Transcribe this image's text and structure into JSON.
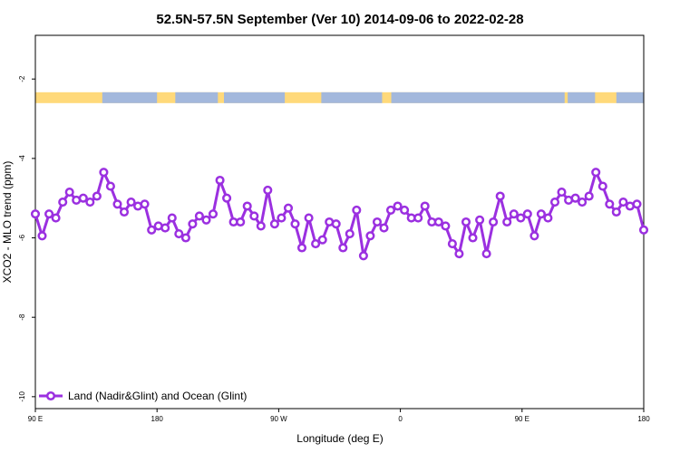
{
  "chart_data": {
    "type": "line",
    "title": "52.5N-57.5N September (Ver 10)   2014-09-06 to 2022-02-28",
    "xlabel": "Longitude (deg E)",
    "ylabel": "XCO2 - MLO trend (ppm)",
    "xlim": [
      0,
      100
    ],
    "ylim": [
      -10.3,
      -0.9
    ],
    "x_ticks": [
      {
        "pos": 0,
        "label": "90 E"
      },
      {
        "pos": 20,
        "label": "180"
      },
      {
        "pos": 40,
        "label": "90 W"
      },
      {
        "pos": 60,
        "label": "0"
      },
      {
        "pos": 80,
        "label": "90 E"
      },
      {
        "pos": 100,
        "label": "180"
      }
    ],
    "y_ticks": [
      -2,
      -4,
      -6,
      -8,
      -10
    ],
    "y_tick_labels": [
      "-2",
      "-4",
      "-6",
      "-8",
      "-10"
    ],
    "series": [
      {
        "name": "Land (Nadir&Glint) and Ocean (Glint)",
        "color": "#9b30e0",
        "values": [
          -5.4,
          -5.95,
          -5.4,
          -5.5,
          -5.1,
          -4.85,
          -5.05,
          -5.0,
          -5.1,
          -4.95,
          -4.35,
          -4.7,
          -5.15,
          -5.35,
          -5.1,
          -5.2,
          -5.15,
          -5.8,
          -5.7,
          -5.75,
          -5.5,
          -5.9,
          -6.0,
          -5.65,
          -5.45,
          -5.55,
          -5.4,
          -4.55,
          -5.0,
          -5.6,
          -5.6,
          -5.2,
          -5.45,
          -5.7,
          -4.8,
          -5.65,
          -5.5,
          -5.25,
          -5.65,
          -6.25,
          -5.5,
          -6.15,
          -6.05,
          -5.6,
          -5.65,
          -6.25,
          -5.9,
          -5.3,
          -6.45,
          -5.95,
          -5.6,
          -5.75,
          -5.3,
          -5.2,
          -5.3,
          -5.5,
          -5.5,
          -5.2,
          -5.6,
          -5.6,
          -5.7,
          -6.15,
          -6.4,
          -5.6,
          -6.0,
          -5.55,
          -6.4,
          -5.6,
          -4.95,
          -5.6,
          -5.4,
          -5.5,
          -5.4,
          -5.95,
          -5.4,
          -5.5,
          -5.1,
          -4.85,
          -5.05,
          -5.0,
          -5.1,
          -4.95,
          -4.35,
          -4.7,
          -5.15,
          -5.35,
          -5.1,
          -5.2,
          -5.15,
          -5.8
        ]
      }
    ],
    "legend_position": "bottom-left",
    "background_band": {
      "y_center": -2.47,
      "colors": [
        "#ffd97a",
        "#a3b8dc"
      ]
    },
    "grid": false
  }
}
